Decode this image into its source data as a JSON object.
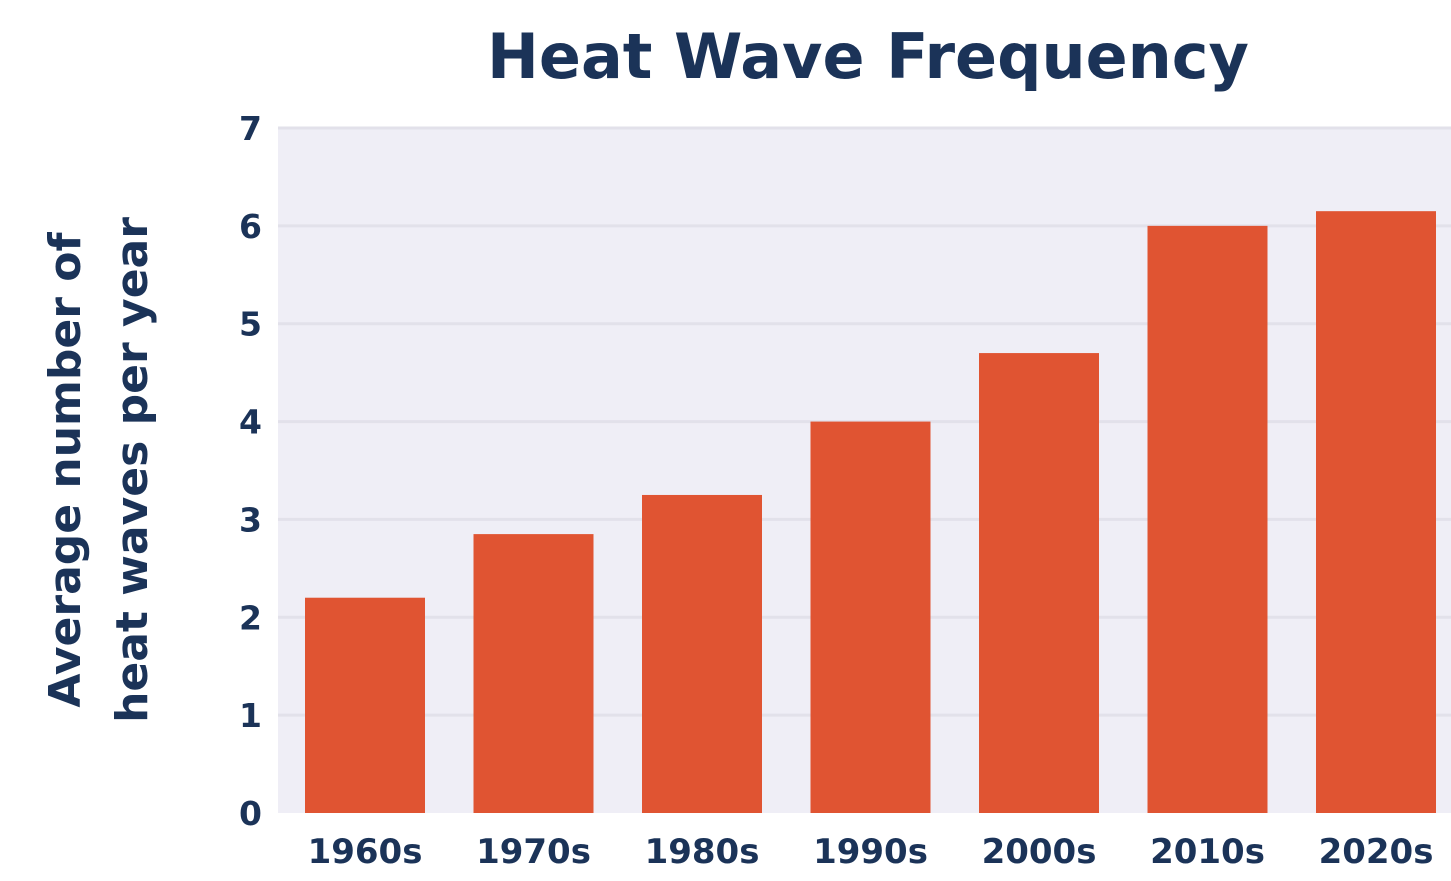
{
  "chart_data": {
    "type": "bar",
    "title": "Heat Wave Frequency",
    "xlabel": "",
    "ylabel_lines": [
      "Average number of",
      "heat waves per year"
    ],
    "categories": [
      "1960s",
      "1970s",
      "1980s",
      "1990s",
      "2000s",
      "2010s",
      "2020s"
    ],
    "values": [
      2.2,
      2.85,
      3.25,
      4.0,
      4.7,
      6.0,
      6.15
    ],
    "ylim": [
      0,
      7
    ],
    "yticks": [
      "0",
      "1",
      "2",
      "3",
      "4",
      "5",
      "6",
      "7"
    ],
    "grid": true,
    "legend": "none",
    "colors": {
      "bar": "#e05432",
      "plot_background": "#efeef6",
      "gridline": "#e2e1ea",
      "text": "#1b3358"
    }
  }
}
